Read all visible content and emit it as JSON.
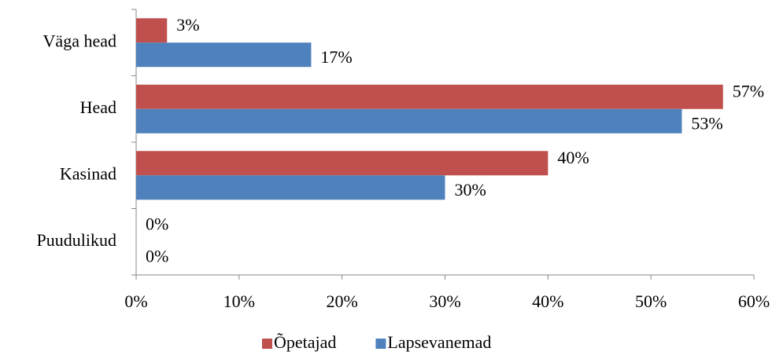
{
  "chart_data": {
    "type": "hbar",
    "categories": [
      "Väga head",
      "Head",
      "Kasinad",
      "Puudulikud"
    ],
    "series": [
      {
        "name": "Õpetajad",
        "color": "#c0504d",
        "values": [
          3,
          57,
          40,
          0
        ],
        "value_labels": [
          "3%",
          "57%",
          "40%",
          "0%"
        ]
      },
      {
        "name": "Lapsevanemad",
        "color": "#4f81bd",
        "values": [
          17,
          53,
          30,
          0
        ],
        "value_labels": [
          "17%",
          "53%",
          "30%",
          "0%"
        ]
      }
    ],
    "xlim": [
      0,
      60
    ],
    "xticks": [
      {
        "value": 0,
        "label": "0%"
      },
      {
        "value": 10,
        "label": "10%"
      },
      {
        "value": 20,
        "label": "20%"
      },
      {
        "value": 30,
        "label": "30%"
      },
      {
        "value": 40,
        "label": "40%"
      },
      {
        "value": 50,
        "label": "50%"
      },
      {
        "value": 60,
        "label": "60%"
      }
    ],
    "legend": "bottom"
  }
}
